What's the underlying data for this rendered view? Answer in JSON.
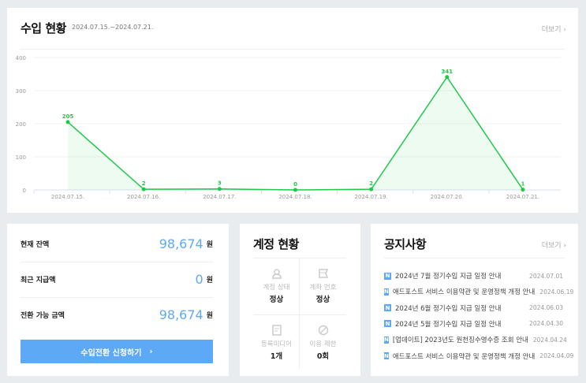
{
  "income": {
    "title": "수입 현황",
    "range": "2024.07.15.~2024.07.21.",
    "more": "더보기 ›"
  },
  "chart_data": {
    "type": "line",
    "categories": [
      "2024.07.15.",
      "2024.07.16.",
      "2024.07.17.",
      "2024.07.18.",
      "2024.07.19.",
      "2024.07.20.",
      "2024.07.21."
    ],
    "values": [
      205,
      2,
      3,
      0,
      2,
      341,
      1
    ],
    "yticks": [
      0,
      100,
      200,
      300,
      400
    ],
    "ylim": [
      0,
      400
    ],
    "grid": true,
    "color": "#1ec94a"
  },
  "balance": {
    "rows": [
      {
        "label": "현재 잔액",
        "value": "98,674",
        "unit": "원"
      },
      {
        "label": "최근 지급액",
        "value": "0",
        "unit": "원"
      },
      {
        "label": "전환 가능 금액",
        "value": "98,674",
        "unit": "원"
      }
    ],
    "button": "수입전환 신청하기",
    "button_arrow": "›"
  },
  "account": {
    "title": "계정 현황",
    "cells": [
      {
        "icon": "user-icon",
        "label": "계정 상태",
        "value": "정상"
      },
      {
        "icon": "card-icon",
        "label": "계좌 번호",
        "value": "정상"
      },
      {
        "icon": "document-icon",
        "label": "등록미디어",
        "value": "1개"
      },
      {
        "icon": "ban-icon",
        "label": "이용 제한",
        "value": "0회"
      }
    ]
  },
  "notices": {
    "title": "공지사항",
    "more": "더보기 ›",
    "badge": "N",
    "items": [
      {
        "title": "2024년 7월 정기수입 지급 일정 안내",
        "date": "2024.07.01"
      },
      {
        "title": "애드포스트 서비스 이용약관 및 운영정책 개정 안내",
        "date": "2024.06.19"
      },
      {
        "title": "2024년 6월 정기수입 지급 일정 안내",
        "date": "2024.06.03"
      },
      {
        "title": "2024년 5월 정기수입 지급 일정 안내",
        "date": "2024.04.30"
      },
      {
        "title": "[업데이트] 2023년도 원천징수영수증 조회 안내",
        "date": "2024.04.24"
      },
      {
        "title": "애드포스트 서비스 이용약관 및 운영정책 개정 안내",
        "date": "2024.04.09"
      }
    ]
  }
}
